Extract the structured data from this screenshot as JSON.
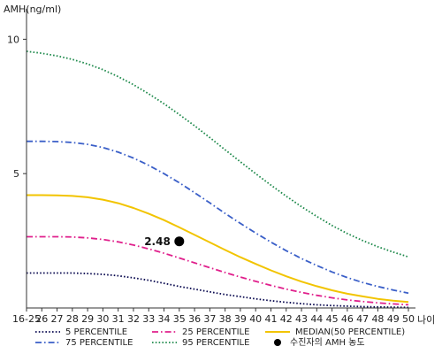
{
  "chart_data": {
    "type": "line",
    "ylabel": "AMH(ng/ml)",
    "xlabel": "나이",
    "categories": [
      "16-25",
      "26",
      "27",
      "28",
      "29",
      "30",
      "31",
      "32",
      "33",
      "34",
      "35",
      "36",
      "37",
      "38",
      "39",
      "40",
      "41",
      "42",
      "43",
      "44",
      "45",
      "46",
      "47",
      "48",
      "49",
      "50"
    ],
    "yticks": [
      5,
      10
    ],
    "ylim": [
      0,
      11
    ],
    "grid": false,
    "legend_position": "bottom",
    "series": [
      {
        "name": "5 PERCENTILE",
        "color": "#0a0a50",
        "style": "dotted",
        "values": [
          1.3,
          1.3,
          1.3,
          1.3,
          1.28,
          1.25,
          1.2,
          1.12,
          1.03,
          0.92,
          0.8,
          0.7,
          0.6,
          0.5,
          0.42,
          0.34,
          0.27,
          0.21,
          0.16,
          0.12,
          0.09,
          0.07,
          0.05,
          0.04,
          0.03,
          0.02
        ]
      },
      {
        "name": "25 PERCENTILE",
        "color": "#e0208c",
        "style": "dashdot",
        "values": [
          2.65,
          2.65,
          2.65,
          2.64,
          2.61,
          2.55,
          2.46,
          2.34,
          2.2,
          2.04,
          1.86,
          1.68,
          1.5,
          1.32,
          1.15,
          0.99,
          0.84,
          0.7,
          0.58,
          0.47,
          0.38,
          0.3,
          0.24,
          0.19,
          0.15,
          0.12
        ]
      },
      {
        "name": "MEDIAN(50 PERCENTILE)",
        "color": "#f2c400",
        "style": "solid",
        "values": [
          4.2,
          4.2,
          4.19,
          4.17,
          4.12,
          4.03,
          3.9,
          3.72,
          3.51,
          3.27,
          3.0,
          2.72,
          2.44,
          2.16,
          1.89,
          1.64,
          1.4,
          1.18,
          0.98,
          0.81,
          0.66,
          0.53,
          0.43,
          0.34,
          0.27,
          0.22
        ]
      },
      {
        "name": "75 PERCENTILE",
        "color": "#3a5fc8",
        "style": "dashdot",
        "values": [
          6.2,
          6.2,
          6.19,
          6.16,
          6.09,
          5.97,
          5.8,
          5.58,
          5.31,
          5.0,
          4.66,
          4.29,
          3.91,
          3.52,
          3.15,
          2.79,
          2.45,
          2.13,
          1.84,
          1.58,
          1.34,
          1.13,
          0.95,
          0.8,
          0.67,
          0.55
        ]
      },
      {
        "name": "95 PERCENTILE",
        "color": "#1f8a4c",
        "style": "dotted",
        "values": [
          9.55,
          9.48,
          9.38,
          9.25,
          9.08,
          8.87,
          8.61,
          8.31,
          7.97,
          7.6,
          7.2,
          6.78,
          6.34,
          5.89,
          5.44,
          5.0,
          4.57,
          4.16,
          3.77,
          3.41,
          3.07,
          2.77,
          2.51,
          2.28,
          2.08,
          1.9
        ]
      }
    ],
    "highlight_point": {
      "name": "수진자의 AMH 농도",
      "x": "35",
      "y": 2.48,
      "label": "2.48",
      "color": "#000000"
    }
  }
}
